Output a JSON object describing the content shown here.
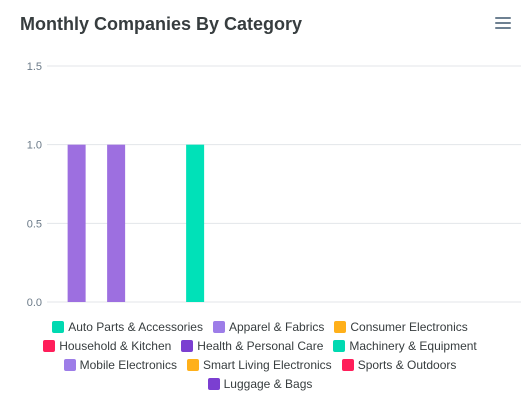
{
  "header": {
    "title": "Monthly Companies By Category",
    "menu_icon": "hamburger-menu-icon"
  },
  "chart_data": {
    "type": "bar",
    "title": "Monthly Companies By Category",
    "xlabel": "",
    "ylabel": "",
    "ylim": [
      0,
      1.5
    ],
    "yticks": [
      "0.0",
      "0.5",
      "1.0",
      "1.5"
    ],
    "grid": true,
    "legend_position": "bottom",
    "series": [
      {
        "name": "Auto Parts & Accessories",
        "color": "#00d9b1",
        "value": 0
      },
      {
        "name": "Apparel & Fabrics",
        "color": "#9d7de8",
        "value": 0
      },
      {
        "name": "Consumer Electronics",
        "color": "#ffb01a",
        "value": 0
      },
      {
        "name": "Household & Kitchen",
        "color": "#ff1e5a",
        "value": 0
      },
      {
        "name": "Health & Personal Care",
        "color": "#7b3fd1",
        "value": 0
      },
      {
        "name": "Machinery & Equipment",
        "color": "#00d9b1",
        "value": 0
      },
      {
        "name": "Mobile Electronics",
        "color": "#9d7de8",
        "value": 0
      },
      {
        "name": "Smart Living Electronics",
        "color": "#ffb01a",
        "value": 0
      },
      {
        "name": "Sports & Outdoors",
        "color": "#ff1e5a",
        "value": 0
      },
      {
        "name": "Luggage & Bags",
        "color": "#7b3fd1",
        "value": 0
      }
    ],
    "bars": [
      {
        "slot": 1,
        "value": 1,
        "color": "#9d6fe0"
      },
      {
        "slot": 3,
        "value": 1,
        "color": "#9d6fe0"
      },
      {
        "slot": 7,
        "value": 1,
        "color": "#00e1b8"
      }
    ],
    "slot_count": 24
  }
}
